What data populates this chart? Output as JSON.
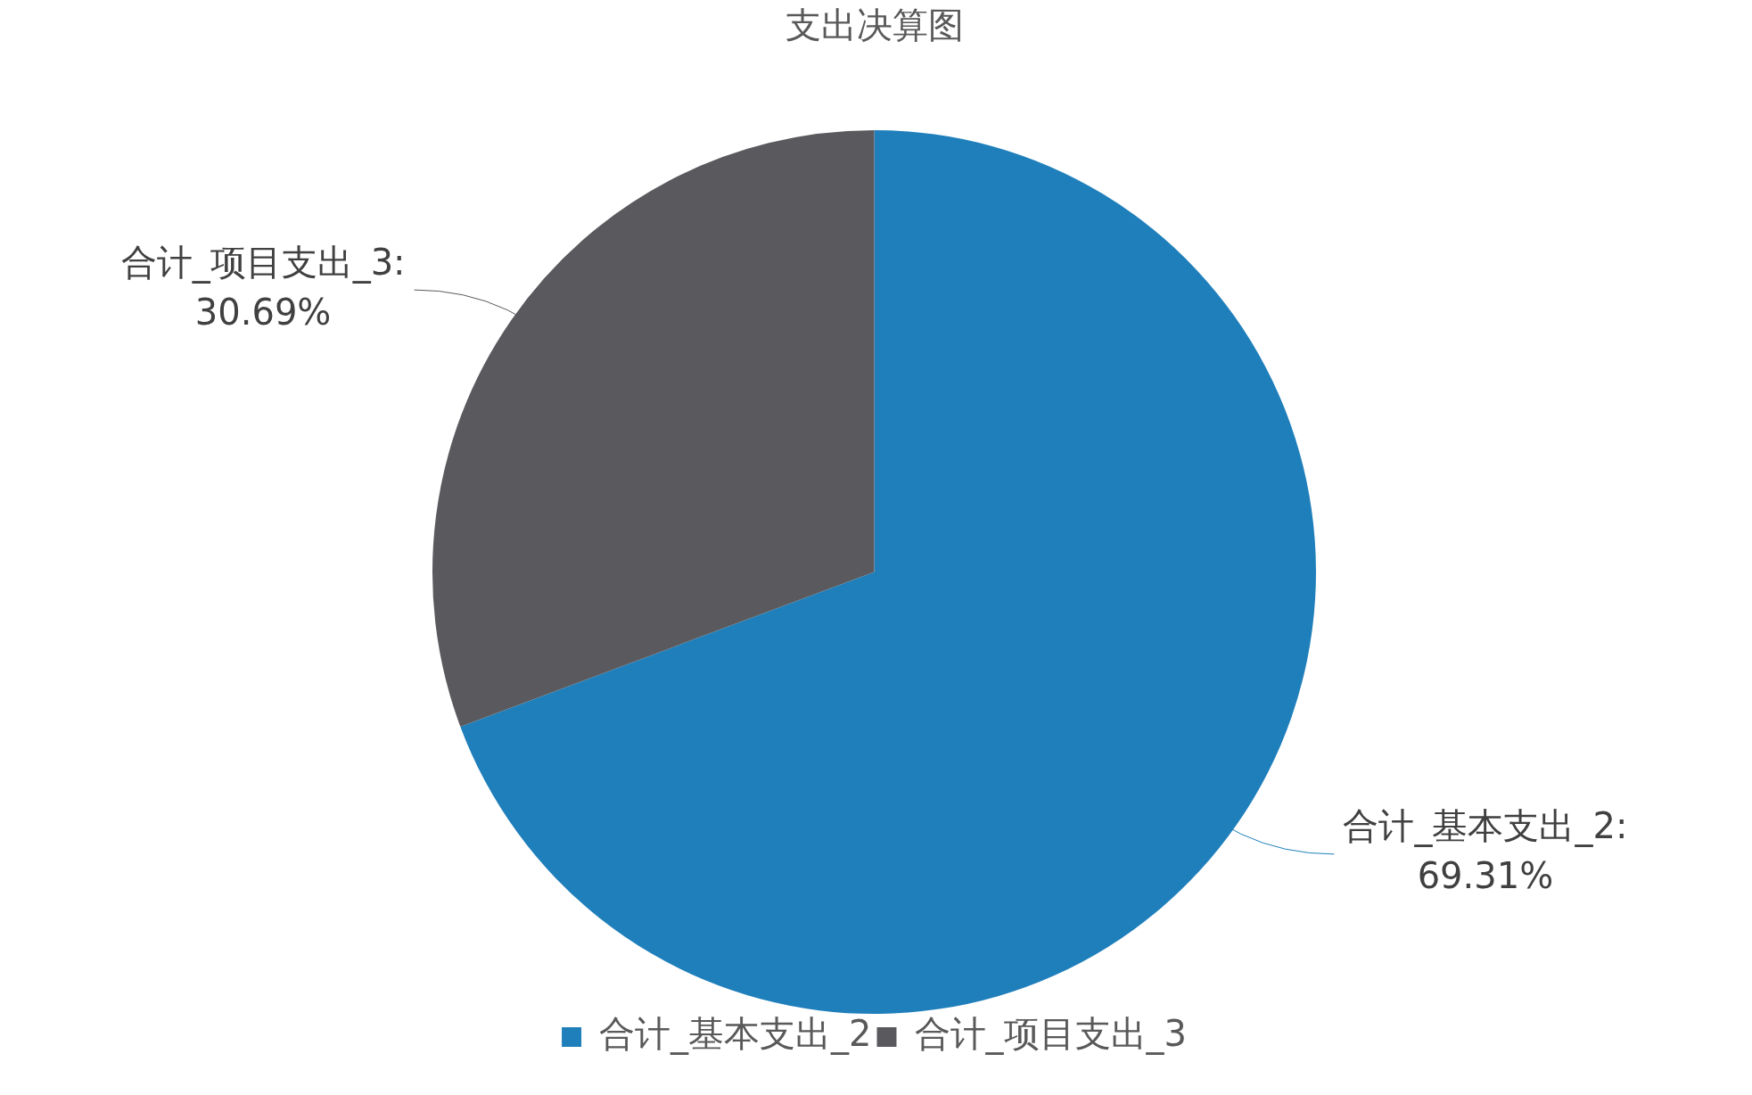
{
  "chart_data": {
    "type": "pie",
    "title": "支出决算图",
    "categories": [
      "合计_基本支出_2",
      "合计_项目支出_3"
    ],
    "values": [
      69.31,
      30.69
    ],
    "colors": [
      "#1f7fbb",
      "#5a5a5e"
    ],
    "value_labels": [
      "合计_基本支出_2:\n69.31%",
      "合计_项目支出_3:\n30.69%"
    ],
    "legend": "bottom"
  }
}
